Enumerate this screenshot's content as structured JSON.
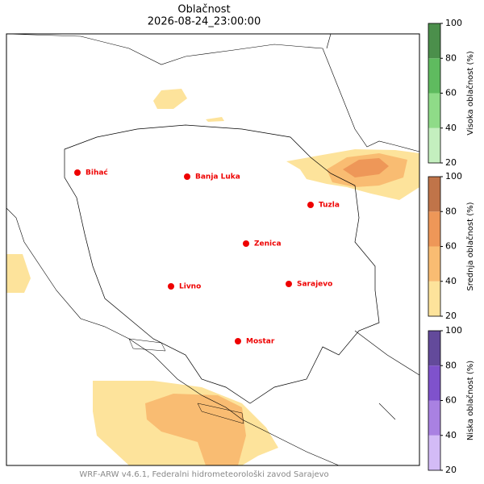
{
  "header": {
    "title": "Oblačnost",
    "subtitle": "2026-08-24_23:00:00"
  },
  "cities": [
    "Bihać",
    "Banja Luka",
    "Tuzla",
    "Zenica",
    "Livno",
    "Sarajevo",
    "Mostar"
  ],
  "colorbars": [
    {
      "label": "Visoka oblačnost (%)",
      "ticks": [
        20,
        40,
        60,
        80,
        100
      ],
      "colors": [
        "#c4efbf",
        "#8fdb88",
        "#5fbb5f",
        "#4b8f4b"
      ]
    },
    {
      "label": "Srednja oblačnost (%)",
      "ticks": [
        20,
        40,
        60,
        80,
        100
      ],
      "colors": [
        "#fde39b",
        "#f9bc72",
        "#ee9758",
        "#c07449"
      ]
    },
    {
      "label": "Niska oblačnost (%)",
      "ticks": [
        20,
        40,
        60,
        80,
        100
      ],
      "colors": [
        "#d3bbf6",
        "#a981e2",
        "#7f52cc",
        "#634a9b"
      ]
    }
  ],
  "footer": "WRF-ARW v4.6.1, Federalni hidrometeorološki zavod Sarajevo"
}
